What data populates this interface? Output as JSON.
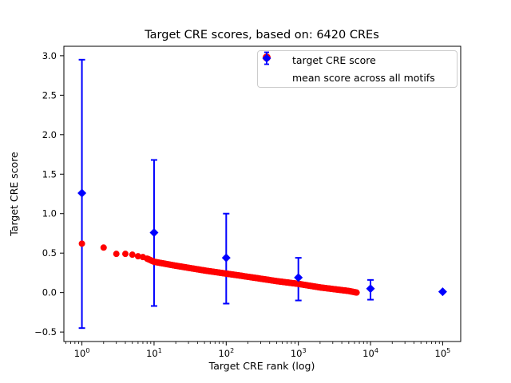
{
  "figure": {
    "background": "#ffffff",
    "text_color": "#000000"
  },
  "chart_data": {
    "type": "scatter",
    "title": "Target CRE scores, based on: 6420 CREs",
    "xlabel": "Target CRE rank (log)",
    "ylabel": "Target CRE score",
    "x_scale": "log",
    "grid": false,
    "xlim_exp": [
      -0.25,
      5.25
    ],
    "ylim": [
      -0.62,
      3.12
    ],
    "x_major_ticks_exp": [
      0,
      1,
      2,
      3,
      4,
      5
    ],
    "x_tick_base": "10",
    "y_ticks": [
      3.0,
      2.5,
      2.0,
      1.5,
      1.0,
      0.5,
      0.0,
      -0.5
    ],
    "legend": {
      "position": "upper right"
    },
    "series": [
      {
        "name": "target CRE score",
        "marker": "circle",
        "color": "#ff0000",
        "n_points": 6420,
        "anchors": [
          [
            1,
            0.62
          ],
          [
            2,
            0.57
          ],
          [
            3,
            0.49
          ],
          [
            4,
            0.49
          ],
          [
            5,
            0.48
          ],
          [
            6,
            0.46
          ],
          [
            7,
            0.45
          ],
          [
            8,
            0.43
          ],
          [
            10,
            0.39
          ],
          [
            20,
            0.34
          ],
          [
            50,
            0.28
          ],
          [
            100,
            0.24
          ],
          [
            200,
            0.2
          ],
          [
            500,
            0.145
          ],
          [
            1000,
            0.11
          ],
          [
            2000,
            0.065
          ],
          [
            3000,
            0.045
          ],
          [
            5000,
            0.02
          ],
          [
            6420,
            0.0
          ]
        ]
      },
      {
        "name": "mean score across all motifs",
        "marker": "diamond",
        "color": "#0000ff",
        "points": [
          {
            "rank": 1,
            "mean": 1.26,
            "err_low": -0.45,
            "err_high": 2.95
          },
          {
            "rank": 10,
            "mean": 0.76,
            "err_low": -0.17,
            "err_high": 1.68
          },
          {
            "rank": 100,
            "mean": 0.44,
            "err_low": -0.14,
            "err_high": 1.0
          },
          {
            "rank": 1000,
            "mean": 0.19,
            "err_low": -0.1,
            "err_high": 0.44
          },
          {
            "rank": 10000,
            "mean": 0.05,
            "err_low": -0.09,
            "err_high": 0.16
          },
          {
            "rank": 100000,
            "mean": 0.01,
            "err_low": null,
            "err_high": null
          }
        ]
      }
    ]
  }
}
